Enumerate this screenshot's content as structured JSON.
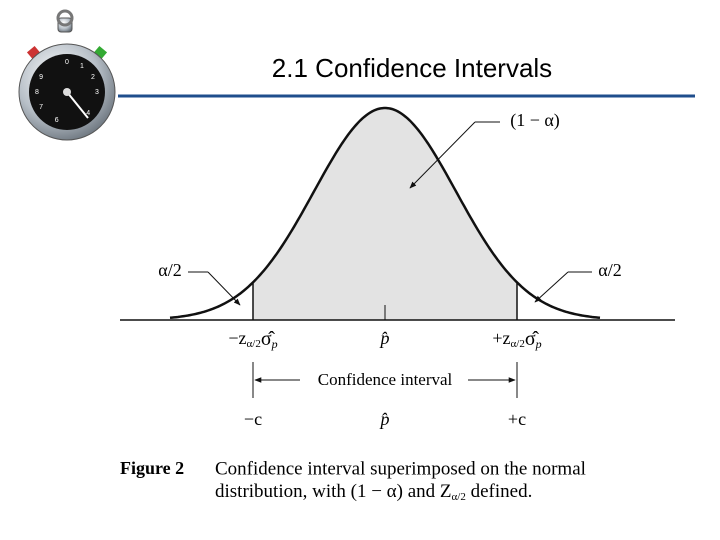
{
  "title": "2.1 Confidence Intervals",
  "stopwatch": {
    "numbers": [
      "0",
      "1",
      "2",
      "3",
      "4",
      "6",
      "7",
      "8",
      "9"
    ]
  },
  "diagram": {
    "center_area_label": "(1 − α)",
    "left_tail_label": "α/2",
    "right_tail_label": "α/2",
    "lower_limit": {
      "z": "−z",
      "z_sub": "α/2",
      "sigma": "σ̂",
      "sigma_sub": "p"
    },
    "center_label": "p̂",
    "upper_limit": {
      "z": "+z",
      "z_sub": "α/2",
      "sigma": "σ̂",
      "sigma_sub": "p"
    },
    "interval_label": "Confidence interval",
    "lower_c": "−c",
    "center_label_2": "p̂",
    "upper_c": "+c"
  },
  "caption": {
    "figure": "Figure 2",
    "line1": "Confidence interval superimposed on the normal",
    "line2_start": "distribution, with (1 − α) and Z",
    "line2_sub": "α/2",
    "line2_end": " defined."
  }
}
